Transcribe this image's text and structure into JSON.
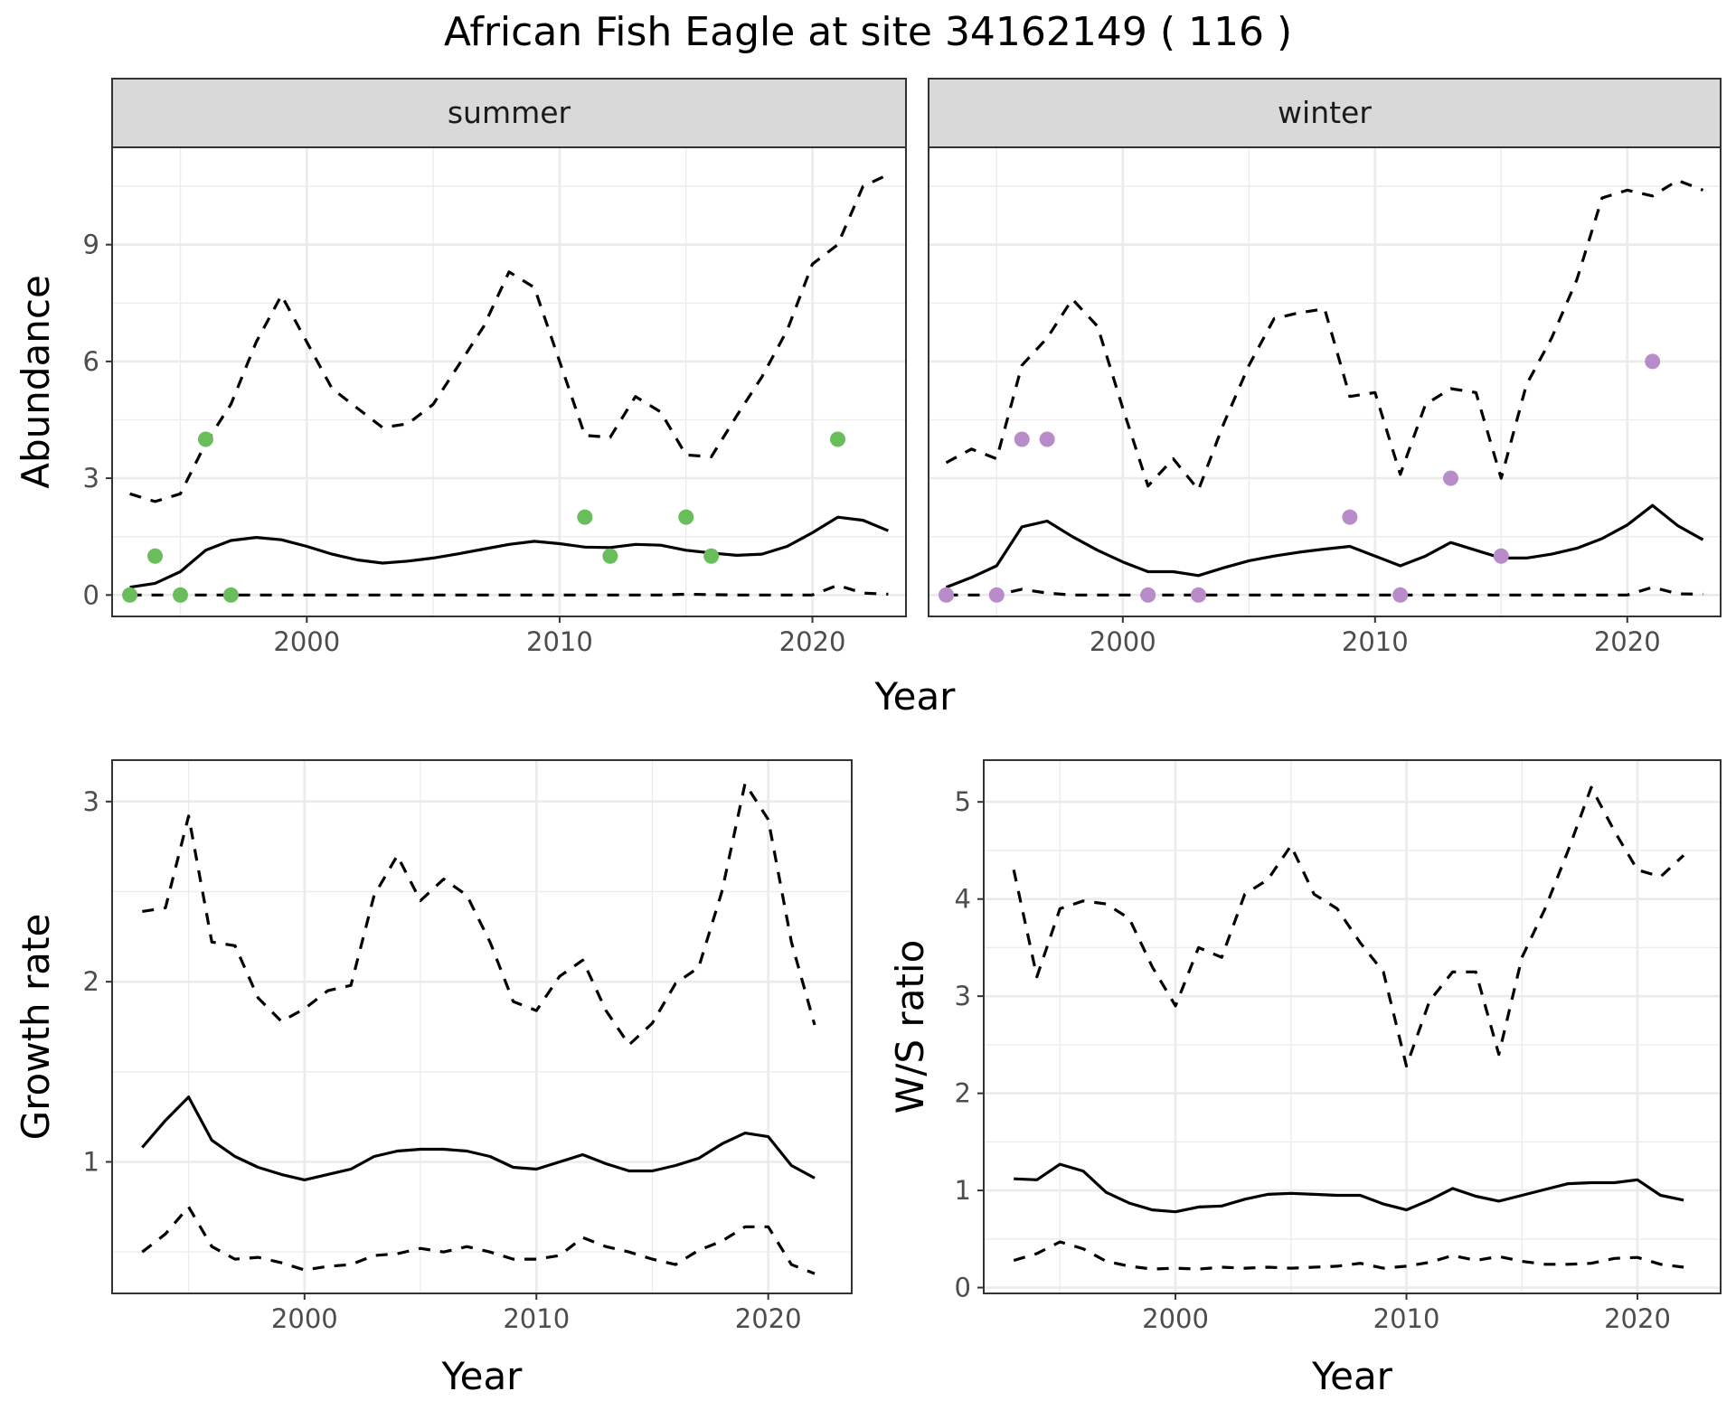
{
  "title": "African Fish Eagle at site 34162149 ( 116 )",
  "colors": {
    "summer_points": "#6ABD5B",
    "winter_points": "#B88CC8",
    "lines": "#000000"
  },
  "chart_data": [
    {
      "type": "line",
      "panel": "summer",
      "strip_label": "summer",
      "xlabel": "",
      "ylabel": "Abundance",
      "xlim": [
        1992.3,
        2023.7
      ],
      "ylim": [
        -0.55,
        11.5
      ],
      "x_ticks": [
        2000,
        2010,
        2020
      ],
      "y_ticks": [
        0,
        3,
        6,
        9
      ],
      "grid": true,
      "series": [
        {
          "style": "solid",
          "x": [
            1993,
            1994,
            1995,
            1996,
            1997,
            1998,
            1999,
            2000,
            2001,
            2002,
            2003,
            2004,
            2005,
            2006,
            2007,
            2008,
            2009,
            2010,
            2011,
            2012,
            2013,
            2014,
            2015,
            2016,
            2017,
            2018,
            2019,
            2020,
            2021,
            2022,
            2023
          ],
          "y": [
            0.2,
            0.3,
            0.6,
            1.15,
            1.4,
            1.48,
            1.42,
            1.25,
            1.05,
            0.9,
            0.82,
            0.87,
            0.95,
            1.06,
            1.18,
            1.3,
            1.38,
            1.32,
            1.23,
            1.22,
            1.3,
            1.28,
            1.15,
            1.08,
            1.02,
            1.05,
            1.25,
            1.6,
            2.0,
            1.92,
            1.65
          ]
        },
        {
          "style": "dashed",
          "x": [
            1993,
            1994,
            1995,
            1996,
            1997,
            1998,
            1999,
            2000,
            2001,
            2002,
            2003,
            2004,
            2005,
            2006,
            2007,
            2008,
            2009,
            2010,
            2011,
            2012,
            2013,
            2014,
            2015,
            2016,
            2017,
            2018,
            2019,
            2020,
            2021,
            2022,
            2023
          ],
          "y": [
            2.6,
            2.4,
            2.6,
            3.9,
            4.9,
            6.5,
            7.7,
            6.5,
            5.3,
            4.8,
            4.3,
            4.4,
            4.9,
            5.9,
            6.9,
            8.3,
            7.9,
            6.0,
            4.1,
            4.05,
            5.1,
            4.7,
            3.6,
            3.55,
            4.6,
            5.6,
            6.8,
            8.5,
            9.0,
            10.5,
            10.8
          ]
        },
        {
          "style": "dashed",
          "x": [
            1993,
            1994,
            1995,
            1996,
            1997,
            1998,
            1999,
            2000,
            2001,
            2002,
            2003,
            2004,
            2005,
            2006,
            2007,
            2008,
            2009,
            2010,
            2011,
            2012,
            2013,
            2014,
            2015,
            2016,
            2017,
            2018,
            2019,
            2020,
            2021,
            2022,
            2023
          ],
          "y": [
            0,
            0,
            0,
            0,
            0,
            0,
            0,
            0,
            0,
            0,
            0,
            0,
            0,
            0,
            0,
            0,
            0,
            0,
            0,
            0,
            0,
            0,
            0.02,
            0.01,
            0,
            0,
            0,
            0,
            0.25,
            0.05,
            0.02
          ]
        }
      ],
      "points": {
        "x": [
          1993,
          1994,
          1995,
          1996,
          1997,
          2011,
          2012,
          2015,
          2016,
          2021
        ],
        "y": [
          0,
          1,
          0,
          4,
          0,
          2,
          1,
          2,
          1,
          4
        ]
      }
    },
    {
      "type": "line",
      "panel": "winter",
      "strip_label": "winter",
      "xlabel": "",
      "ylabel": "",
      "xlim": [
        1992.3,
        2023.7
      ],
      "ylim": [
        -0.55,
        11.5
      ],
      "x_ticks": [
        2000,
        2010,
        2020
      ],
      "y_ticks": [
        0,
        3,
        6,
        9
      ],
      "grid": true,
      "series": [
        {
          "style": "solid",
          "x": [
            1993,
            1994,
            1995,
            1996,
            1997,
            1998,
            1999,
            2000,
            2001,
            2002,
            2003,
            2004,
            2005,
            2006,
            2007,
            2008,
            2009,
            2010,
            2011,
            2012,
            2013,
            2014,
            2015,
            2016,
            2017,
            2018,
            2019,
            2020,
            2021,
            2022,
            2023
          ],
          "y": [
            0.2,
            0.45,
            0.75,
            1.75,
            1.9,
            1.5,
            1.15,
            0.85,
            0.6,
            0.6,
            0.5,
            0.7,
            0.88,
            1.0,
            1.1,
            1.18,
            1.25,
            1.0,
            0.75,
            1.0,
            1.35,
            1.15,
            0.95,
            0.95,
            1.05,
            1.2,
            1.45,
            1.8,
            2.3,
            1.78,
            1.42
          ]
        },
        {
          "style": "dashed",
          "x": [
            1993,
            1994,
            1995,
            1996,
            1997,
            1998,
            1999,
            2000,
            2001,
            2002,
            2003,
            2004,
            2005,
            2006,
            2007,
            2008,
            2009,
            2010,
            2011,
            2012,
            2013,
            2014,
            2015,
            2016,
            2017,
            2018,
            2019,
            2020,
            2021,
            2022,
            2023
          ],
          "y": [
            3.4,
            3.75,
            3.5,
            5.9,
            6.6,
            7.6,
            6.9,
            4.8,
            2.8,
            3.5,
            2.7,
            4.4,
            5.9,
            7.1,
            7.25,
            7.35,
            5.1,
            5.2,
            3.1,
            4.9,
            5.3,
            5.2,
            3.0,
            5.4,
            6.6,
            8.1,
            10.2,
            10.4,
            10.25,
            10.65,
            10.4
          ]
        },
        {
          "style": "dashed",
          "x": [
            1993,
            1994,
            1995,
            1996,
            1997,
            1998,
            1999,
            2000,
            2001,
            2002,
            2003,
            2004,
            2005,
            2006,
            2007,
            2008,
            2009,
            2010,
            2011,
            2012,
            2013,
            2014,
            2015,
            2016,
            2017,
            2018,
            2019,
            2020,
            2021,
            2022,
            2023
          ],
          "y": [
            0,
            0,
            0,
            0.15,
            0.05,
            0,
            0,
            0,
            0,
            0,
            0,
            0,
            0,
            0,
            0,
            0,
            0,
            0,
            0,
            0,
            0,
            0,
            0,
            0,
            0,
            0,
            0,
            0,
            0.2,
            0.03,
            0.02
          ]
        }
      ],
      "points": {
        "x": [
          1993,
          1995,
          1996,
          1997,
          2001,
          2003,
          2009,
          2011,
          2013,
          2015,
          2021
        ],
        "y": [
          0,
          0,
          4,
          4,
          0,
          0,
          2,
          0,
          3,
          1,
          6
        ]
      }
    },
    {
      "type": "line",
      "panel": "growth",
      "xlabel": "Year",
      "ylabel": "Growth rate",
      "xlim": [
        1991.7,
        2023.6
      ],
      "ylim": [
        0.27,
        3.23
      ],
      "x_ticks": [
        2000,
        2010,
        2020
      ],
      "y_ticks": [
        1,
        2,
        3
      ],
      "grid": true,
      "series": [
        {
          "style": "solid",
          "x": [
            1993,
            1994,
            1995,
            1996,
            1997,
            1998,
            1999,
            2000,
            2001,
            2002,
            2003,
            2004,
            2005,
            2006,
            2007,
            2008,
            2009,
            2010,
            2011,
            2012,
            2013,
            2014,
            2015,
            2016,
            2017,
            2018,
            2019,
            2020,
            2021,
            2022
          ],
          "y": [
            1.08,
            1.23,
            1.36,
            1.12,
            1.03,
            0.97,
            0.93,
            0.9,
            0.93,
            0.96,
            1.03,
            1.06,
            1.07,
            1.07,
            1.06,
            1.03,
            0.97,
            0.96,
            1.0,
            1.04,
            0.99,
            0.95,
            0.95,
            0.98,
            1.02,
            1.1,
            1.16,
            1.14,
            0.98,
            0.91
          ]
        },
        {
          "style": "dashed",
          "x": [
            1993,
            1994,
            1995,
            1996,
            1997,
            1998,
            1999,
            2000,
            2001,
            2002,
            2003,
            2004,
            2005,
            2006,
            2007,
            2008,
            2009,
            2010,
            2011,
            2012,
            2013,
            2014,
            2015,
            2016,
            2017,
            2018,
            2019,
            2020,
            2021,
            2022
          ],
          "y": [
            2.39,
            2.41,
            2.92,
            2.22,
            2.2,
            1.91,
            1.78,
            1.85,
            1.95,
            1.98,
            2.48,
            2.7,
            2.45,
            2.57,
            2.48,
            2.22,
            1.89,
            1.84,
            2.03,
            2.12,
            1.84,
            1.65,
            1.77,
            1.99,
            2.08,
            2.5,
            3.1,
            2.9,
            2.22,
            1.76
          ]
        },
        {
          "style": "dashed",
          "x": [
            1993,
            1994,
            1995,
            1996,
            1997,
            1998,
            1999,
            2000,
            2001,
            2002,
            2003,
            2004,
            2005,
            2006,
            2007,
            2008,
            2009,
            2010,
            2011,
            2012,
            2013,
            2014,
            2015,
            2016,
            2017,
            2018,
            2019,
            2020,
            2021,
            2022
          ],
          "y": [
            0.5,
            0.6,
            0.75,
            0.53,
            0.46,
            0.47,
            0.44,
            0.4,
            0.42,
            0.43,
            0.48,
            0.49,
            0.52,
            0.5,
            0.53,
            0.5,
            0.46,
            0.46,
            0.48,
            0.58,
            0.53,
            0.5,
            0.46,
            0.43,
            0.51,
            0.56,
            0.64,
            0.64,
            0.43,
            0.38
          ]
        }
      ]
    },
    {
      "type": "line",
      "panel": "ratio",
      "xlabel": "Year",
      "ylabel": "W/S ratio",
      "xlim": [
        1991.7,
        2023.6
      ],
      "ylim": [
        -0.06,
        5.43
      ],
      "x_ticks": [
        2000,
        2010,
        2020
      ],
      "y_ticks": [
        0,
        1,
        2,
        3,
        4,
        5
      ],
      "grid": true,
      "series": [
        {
          "style": "solid",
          "x": [
            1993,
            1994,
            1995,
            1996,
            1997,
            1998,
            1999,
            2000,
            2001,
            2002,
            2003,
            2004,
            2005,
            2006,
            2007,
            2008,
            2009,
            2010,
            2011,
            2012,
            2013,
            2014,
            2015,
            2016,
            2017,
            2018,
            2019,
            2020,
            2021,
            2022
          ],
          "y": [
            1.12,
            1.11,
            1.27,
            1.2,
            0.98,
            0.87,
            0.8,
            0.78,
            0.83,
            0.84,
            0.91,
            0.96,
            0.97,
            0.96,
            0.95,
            0.95,
            0.86,
            0.8,
            0.9,
            1.02,
            0.94,
            0.89,
            0.95,
            1.01,
            1.07,
            1.08,
            1.08,
            1.11,
            0.95,
            0.9
          ]
        },
        {
          "style": "dashed",
          "x": [
            1993,
            1994,
            1995,
            1996,
            1997,
            1998,
            1999,
            2000,
            2001,
            2002,
            2003,
            2004,
            2005,
            2006,
            2007,
            2008,
            2009,
            2010,
            2011,
            2012,
            2013,
            2014,
            2015,
            2016,
            2017,
            2018,
            2019,
            2020,
            2021,
            2022
          ],
          "y": [
            4.3,
            3.2,
            3.9,
            3.98,
            3.95,
            3.8,
            3.3,
            2.9,
            3.5,
            3.4,
            4.05,
            4.2,
            4.55,
            4.05,
            3.9,
            3.55,
            3.25,
            2.28,
            2.95,
            3.25,
            3.25,
            2.4,
            3.4,
            3.9,
            4.5,
            5.15,
            4.7,
            4.3,
            4.23,
            4.45
          ]
        },
        {
          "style": "dashed",
          "x": [
            1993,
            1994,
            1995,
            1996,
            1997,
            1998,
            1999,
            2000,
            2001,
            2002,
            2003,
            2004,
            2005,
            2006,
            2007,
            2008,
            2009,
            2010,
            2011,
            2012,
            2013,
            2014,
            2015,
            2016,
            2017,
            2018,
            2019,
            2020,
            2021,
            2022
          ],
          "y": [
            0.28,
            0.35,
            0.47,
            0.4,
            0.27,
            0.22,
            0.19,
            0.2,
            0.19,
            0.21,
            0.2,
            0.21,
            0.2,
            0.21,
            0.22,
            0.25,
            0.2,
            0.22,
            0.26,
            0.33,
            0.28,
            0.32,
            0.27,
            0.24,
            0.24,
            0.25,
            0.3,
            0.31,
            0.24,
            0.21
          ]
        }
      ]
    }
  ],
  "shared_xlabel_top": "Year"
}
